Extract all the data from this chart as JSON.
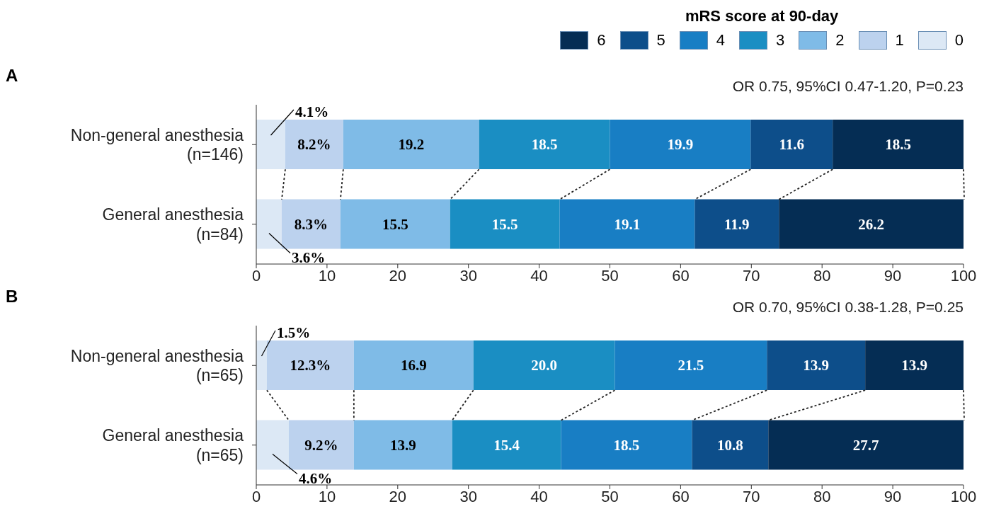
{
  "chart_data": [
    {
      "type": "bar",
      "title": "A",
      "orientation": "horizontal",
      "stacked": true,
      "legend": "top right",
      "legend_title": "mRS score at 90-day",
      "categories": [
        "Non-general anesthesia\n(n=146)",
        "General anesthesia\n(n=84)"
      ],
      "xlim": [
        0,
        100
      ],
      "xticks": [
        0,
        10,
        20,
        30,
        40,
        50,
        60,
        70,
        80,
        90,
        100
      ],
      "annotations": [
        "OR 0.75, 95%CI 0.47-1.20, P=0.23"
      ],
      "series": [
        {
          "name": "0",
          "color": "#dce8f5",
          "values": [
            4.1,
            3.6
          ],
          "value_labels": [
            "4.1%",
            "3.6%"
          ]
        },
        {
          "name": "1",
          "color": "#bcd2ee",
          "values": [
            8.2,
            8.3
          ],
          "value_labels": [
            "8.2%",
            "8.3%"
          ]
        },
        {
          "name": "2",
          "color": "#7fbbe7",
          "values": [
            19.2,
            15.5
          ],
          "value_labels": [
            "19.2",
            "15.5"
          ]
        },
        {
          "name": "3",
          "color": "#1a8ec3",
          "values": [
            18.5,
            15.5
          ],
          "value_labels": [
            "18.5",
            "15.5"
          ]
        },
        {
          "name": "4",
          "color": "#187ec4",
          "values": [
            19.9,
            19.1
          ],
          "value_labels": [
            "19.9",
            "19.1"
          ]
        },
        {
          "name": "5",
          "color": "#0d4e8a",
          "values": [
            11.6,
            11.9
          ],
          "value_labels": [
            "11.6",
            "11.9"
          ]
        },
        {
          "name": "6",
          "color": "#052d54",
          "values": [
            18.5,
            26.2
          ],
          "value_labels": [
            "18.5",
            "26.2"
          ]
        }
      ]
    },
    {
      "type": "bar",
      "title": "B",
      "orientation": "horizontal",
      "stacked": true,
      "categories": [
        "Non-general anesthesia\n(n=65)",
        "General anesthesia\n(n=65)"
      ],
      "xlim": [
        0,
        100
      ],
      "xticks": [
        0,
        10,
        20,
        30,
        40,
        50,
        60,
        70,
        80,
        90,
        100
      ],
      "annotations": [
        "OR 0.70, 95%CI 0.38-1.28, P=0.25"
      ],
      "series": [
        {
          "name": "0",
          "color": "#dce8f5",
          "values": [
            1.5,
            4.6
          ],
          "value_labels": [
            "1.5%",
            "4.6%"
          ]
        },
        {
          "name": "1",
          "color": "#bcd2ee",
          "values": [
            12.3,
            9.2
          ],
          "value_labels": [
            "12.3%",
            "9.2%"
          ]
        },
        {
          "name": "2",
          "color": "#7fbbe7",
          "values": [
            16.9,
            13.9
          ],
          "value_labels": [
            "16.9",
            "13.9"
          ]
        },
        {
          "name": "3",
          "color": "#1a8ec3",
          "values": [
            20.0,
            15.4
          ],
          "value_labels": [
            "20.0",
            "15.4"
          ]
        },
        {
          "name": "4",
          "color": "#187ec4",
          "values": [
            21.5,
            18.5
          ],
          "value_labels": [
            "21.5",
            "18.5"
          ]
        },
        {
          "name": "5",
          "color": "#0d4e8a",
          "values": [
            13.9,
            10.8
          ],
          "value_labels": [
            "13.9",
            "10.8"
          ]
        },
        {
          "name": "6",
          "color": "#052d54",
          "values": [
            13.9,
            27.7
          ],
          "value_labels": [
            "13.9",
            "27.7"
          ]
        }
      ]
    }
  ]
}
